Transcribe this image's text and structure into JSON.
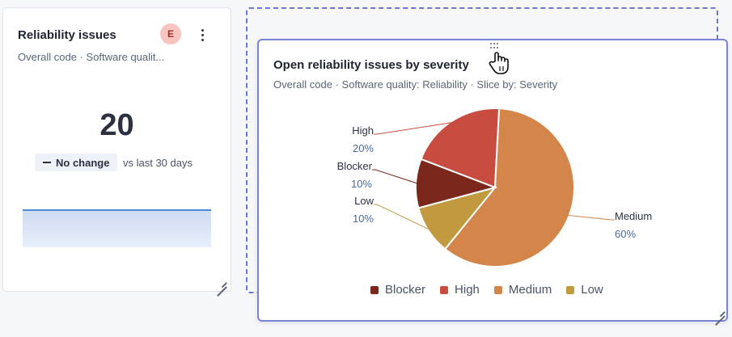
{
  "left_card": {
    "title": "Reliability issues",
    "subtitle": "Overall code · Software qualit...",
    "avatar_initial": "E",
    "value": "20",
    "change_label": "No change",
    "comparison": "vs last 30 days"
  },
  "right_card": {
    "title": "Open reliability issues by severity",
    "subtitle": "Overall code · Software quality: Reliability · Slice by: Severity"
  },
  "chart_data": {
    "type": "pie",
    "title": "Open reliability issues by severity",
    "slices": [
      {
        "name": "High",
        "value": 20,
        "label": "20%",
        "color": "#c84c40"
      },
      {
        "name": "Medium",
        "value": 60,
        "label": "60%",
        "color": "#d4854a"
      },
      {
        "name": "Low",
        "value": 10,
        "label": "10%",
        "color": "#c19a3f"
      },
      {
        "name": "Blocker",
        "value": 10,
        "label": "10%",
        "color": "#7b271b"
      }
    ],
    "legend": [
      "Blocker",
      "High",
      "Medium",
      "Low"
    ],
    "legend_placement": "bottom"
  }
}
